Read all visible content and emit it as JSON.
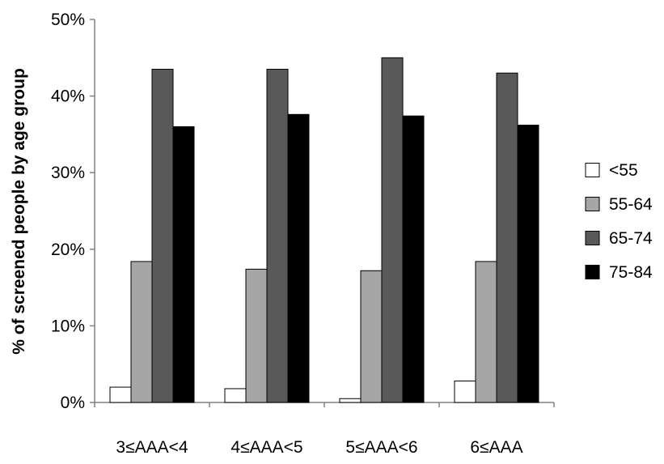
{
  "chart_data": {
    "type": "bar",
    "title": "",
    "xlabel": "",
    "ylabel": "% of screened people by age group",
    "ylim": [
      0,
      50
    ],
    "y_ticks": [
      "0%",
      "10%",
      "20%",
      "30%",
      "40%",
      "50%"
    ],
    "grid": false,
    "legend_position": "right",
    "categories": [
      "3≤AAA<4",
      "4≤AAA<5",
      "5≤AAA<6",
      "6≤AAA"
    ],
    "series": [
      {
        "name": "<55",
        "color": "#ffffff",
        "values": [
          2.0,
          1.8,
          0.5,
          2.8
        ]
      },
      {
        "name": "55-64",
        "color": "#a6a6a6",
        "values": [
          18.4,
          17.4,
          17.2,
          18.4
        ]
      },
      {
        "name": "65-74",
        "color": "#595959",
        "values": [
          43.5,
          43.5,
          45.0,
          43.0
        ]
      },
      {
        "name": "75-84",
        "color": "#000000",
        "values": [
          36.0,
          37.6,
          37.4,
          36.2
        ]
      }
    ]
  }
}
